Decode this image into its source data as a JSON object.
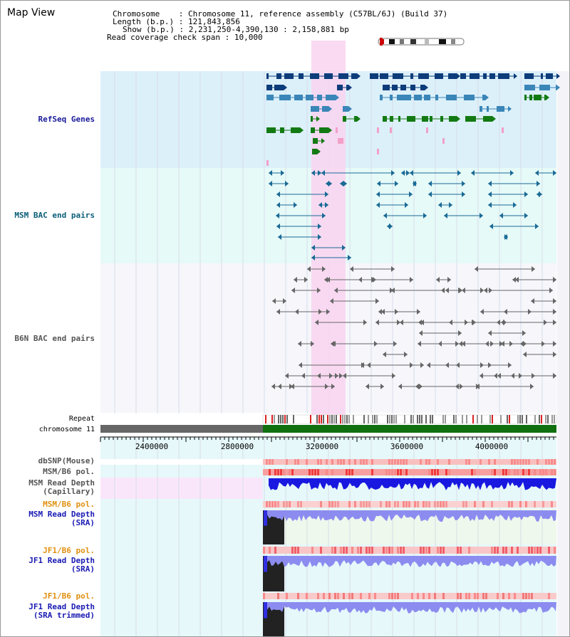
{
  "map_title": "Map View",
  "info": {
    "chromosome_label": "Chromosome",
    "chromosome_value": "Chromosome 11, reference assembly (C57BL/6J) (Build 37)",
    "length_label": "Length (b.p.)",
    "length_value": "121,843,856",
    "show_label": "Show (b.p.)",
    "show_value": "2,231,250-4,390,130 : 2,158,881 bp",
    "coverage_label": "Read coverage check span",
    "coverage_value": "10,000",
    "sep": ":"
  },
  "tracks": {
    "refseq": "RefSeq Genes",
    "msm_bac": "MSM BAC end pairs",
    "b6n_bac": "B6N BAC end pairs",
    "repeat": "Repeat",
    "chromosome": "chromosome 11",
    "dbsnp": "dbSNP(Mouse)",
    "msm_b6_pol": "MSM/B6 pol.",
    "msm_depth_cap": "MSM Read Depth\n(Capillary)",
    "msm_b6_pol2": "MSM/B6 pol.",
    "msm_depth_sra": "MSM Read Depth\n(SRA)",
    "jf1_b6_pol": "JF1/B6 pol.",
    "jf1_depth_sra": "JF1 Read Depth\n(SRA)",
    "jf1_b6_pol2": "JF1/B6 pol.",
    "jf1_depth_trim": "JF1 Read Depth\n(SRA trimmed)"
  },
  "axis": {
    "ticks": [
      "2400000",
      "2800000",
      "3200000",
      "3600000",
      "4000000"
    ]
  },
  "colors": {
    "refseq_bg": "#dcf0fa",
    "msm_bg": "#e6faf8",
    "highlight": "#f9d4f0",
    "gene_dark": "#0d3c7a",
    "gene_mid": "#3a86b8",
    "gene_green": "#137a13",
    "msm_pair": "#1a6a96",
    "b6n_pair": "#555555",
    "chrom_green": "#107010",
    "depth_blue": "#1818e0",
    "depth_light": "#8c8cf0",
    "pol_red": "#f03c3c"
  }
}
